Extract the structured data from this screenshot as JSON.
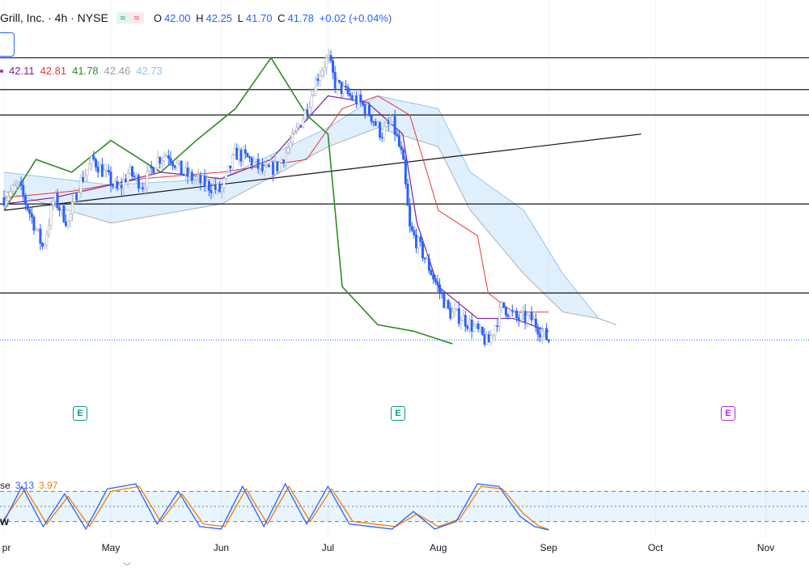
{
  "header": {
    "symbol_title": "Grill, Inc. · 4h · NYSE",
    "pill_left": "≈",
    "pill_right": "≈",
    "open_label": "O",
    "open": "42.00",
    "high_label": "H",
    "high": "42.25",
    "low_label": "L",
    "low": "41.70",
    "close_label": "C",
    "close": "41.78",
    "change": "+0.02 (+0.04%)"
  },
  "ichimoku_legend": {
    "values": [
      "42.11",
      "42.81",
      "41.78",
      "42.46",
      "42.73"
    ],
    "colors": [
      "#7b1fa2",
      "#e53935",
      "#2e8b22",
      "#9e9e9e",
      "#90c4f5"
    ]
  },
  "stoch_legend": {
    "label_fragment": "se",
    "k_value": "3.13",
    "d_value": "3.97",
    "k_color": "#2962ff",
    "d_color": "#f57c00"
  },
  "w_tag": "w",
  "earnings_markers": [
    {
      "label": "E",
      "month": "Apr",
      "type": "past"
    },
    {
      "label": "E",
      "month": "Jul",
      "type": "past"
    },
    {
      "label": "E",
      "month": "Oct",
      "type": "future"
    }
  ],
  "chart_data": {
    "type": "candlestick",
    "timeframe": "4h",
    "x_tick_labels": [
      "pr",
      "May",
      "Jun",
      "Jul",
      "Aug",
      "Sep",
      "Oct",
      "Nov"
    ],
    "price_range_visible": [
      41.4,
      44.2
    ],
    "last_price": 41.78,
    "horizontal_levels": [
      44.0,
      43.75,
      43.55,
      42.85,
      42.15
    ],
    "trendline": {
      "from": {
        "date": "2024-04-01",
        "price": 42.8
      },
      "to": {
        "date": "2024-09-27",
        "price": 43.4
      }
    },
    "price_path": [
      {
        "date": "2024-04-01",
        "price": 42.9
      },
      {
        "date": "2024-04-05",
        "price": 43.0
      },
      {
        "date": "2024-04-08",
        "price": 42.8
      },
      {
        "date": "2024-04-12",
        "price": 42.5
      },
      {
        "date": "2024-04-15",
        "price": 42.9
      },
      {
        "date": "2024-04-19",
        "price": 42.7
      },
      {
        "date": "2024-04-22",
        "price": 43.0
      },
      {
        "date": "2024-04-26",
        "price": 43.2
      },
      {
        "date": "2024-04-29",
        "price": 43.1
      },
      {
        "date": "2024-05-03",
        "price": 42.95
      },
      {
        "date": "2024-05-06",
        "price": 43.1
      },
      {
        "date": "2024-05-10",
        "price": 43.0
      },
      {
        "date": "2024-05-14",
        "price": 43.2
      },
      {
        "date": "2024-05-17",
        "price": 43.25
      },
      {
        "date": "2024-05-21",
        "price": 43.1
      },
      {
        "date": "2024-05-24",
        "price": 43.05
      },
      {
        "date": "2024-05-28",
        "price": 43.0
      },
      {
        "date": "2024-06-01",
        "price": 42.95
      },
      {
        "date": "2024-06-05",
        "price": 43.25
      },
      {
        "date": "2024-06-09",
        "price": 43.2
      },
      {
        "date": "2024-06-13",
        "price": 43.1
      },
      {
        "date": "2024-06-17",
        "price": 43.15
      },
      {
        "date": "2024-06-21",
        "price": 43.35
      },
      {
        "date": "2024-06-25",
        "price": 43.6
      },
      {
        "date": "2024-06-28",
        "price": 43.85
      },
      {
        "date": "2024-07-01",
        "price": 44.0
      },
      {
        "date": "2024-07-03",
        "price": 43.8
      },
      {
        "date": "2024-07-07",
        "price": 43.7
      },
      {
        "date": "2024-07-10",
        "price": 43.65
      },
      {
        "date": "2024-07-13",
        "price": 43.55
      },
      {
        "date": "2024-07-16",
        "price": 43.4
      },
      {
        "date": "2024-07-19",
        "price": 43.5
      },
      {
        "date": "2024-07-22",
        "price": 43.2
      },
      {
        "date": "2024-07-24",
        "price": 42.65
      },
      {
        "date": "2024-07-27",
        "price": 42.5
      },
      {
        "date": "2024-07-31",
        "price": 42.25
      },
      {
        "date": "2024-08-04",
        "price": 42.0
      },
      {
        "date": "2024-08-08",
        "price": 41.95
      },
      {
        "date": "2024-08-12",
        "price": 41.85
      },
      {
        "date": "2024-08-15",
        "price": 41.75
      },
      {
        "date": "2024-08-19",
        "price": 42.05
      },
      {
        "date": "2024-08-23",
        "price": 41.95
      },
      {
        "date": "2024-08-27",
        "price": 41.95
      },
      {
        "date": "2024-09-01",
        "price": 41.78
      }
    ],
    "tenkan_sen": [
      {
        "date": "2024-04-01",
        "price": 42.85
      },
      {
        "date": "2024-04-15",
        "price": 42.9
      },
      {
        "date": "2024-05-01",
        "price": 43.0
      },
      {
        "date": "2024-05-15",
        "price": 43.1
      },
      {
        "date": "2024-06-01",
        "price": 43.05
      },
      {
        "date": "2024-06-15",
        "price": 43.2
      },
      {
        "date": "2024-07-01",
        "price": 43.7
      },
      {
        "date": "2024-07-12",
        "price": 43.65
      },
      {
        "date": "2024-07-22",
        "price": 43.4
      },
      {
        "date": "2024-07-26",
        "price": 42.7
      },
      {
        "date": "2024-08-01",
        "price": 42.2
      },
      {
        "date": "2024-08-12",
        "price": 41.95
      },
      {
        "date": "2024-08-22",
        "price": 41.95
      },
      {
        "date": "2024-09-01",
        "price": 41.85
      }
    ],
    "kijun_sen": [
      {
        "date": "2024-04-01",
        "price": 42.9
      },
      {
        "date": "2024-04-20",
        "price": 42.95
      },
      {
        "date": "2024-05-10",
        "price": 43.05
      },
      {
        "date": "2024-06-01",
        "price": 43.1
      },
      {
        "date": "2024-06-25",
        "price": 43.2
      },
      {
        "date": "2024-07-05",
        "price": 43.6
      },
      {
        "date": "2024-07-15",
        "price": 43.7
      },
      {
        "date": "2024-07-24",
        "price": 43.55
      },
      {
        "date": "2024-08-01",
        "price": 42.8
      },
      {
        "date": "2024-08-12",
        "price": 42.6
      },
      {
        "date": "2024-08-15",
        "price": 42.15
      },
      {
        "date": "2024-08-22",
        "price": 42.0
      },
      {
        "date": "2024-09-01",
        "price": 42.0
      }
    ],
    "chikou_span": [
      {
        "date": "2024-04-01",
        "price": 42.8
      },
      {
        "date": "2024-04-10",
        "price": 43.2
      },
      {
        "date": "2024-04-20",
        "price": 43.1
      },
      {
        "date": "2024-05-01",
        "price": 43.35
      },
      {
        "date": "2024-05-15",
        "price": 43.1
      },
      {
        "date": "2024-05-25",
        "price": 43.35
      },
      {
        "date": "2024-06-05",
        "price": 43.6
      },
      {
        "date": "2024-06-15",
        "price": 44.0
      },
      {
        "date": "2024-06-25",
        "price": 43.55
      },
      {
        "date": "2024-07-01",
        "price": 43.4
      },
      {
        "date": "2024-07-05",
        "price": 42.2
      },
      {
        "date": "2024-07-15",
        "price": 41.9
      },
      {
        "date": "2024-07-25",
        "price": 41.85
      },
      {
        "date": "2024-08-05",
        "price": 41.75
      }
    ],
    "cloud_upper": [
      {
        "date": "2024-04-01",
        "price": 43.1
      },
      {
        "date": "2024-05-01",
        "price": 43.0
      },
      {
        "date": "2024-06-01",
        "price": 43.05
      },
      {
        "date": "2024-07-01",
        "price": 43.45
      },
      {
        "date": "2024-07-15",
        "price": 43.7
      },
      {
        "date": "2024-08-01",
        "price": 43.6
      },
      {
        "date": "2024-08-10",
        "price": 43.1
      },
      {
        "date": "2024-08-25",
        "price": 42.8
      },
      {
        "date": "2024-09-05",
        "price": 42.3
      },
      {
        "date": "2024-09-15",
        "price": 41.95
      },
      {
        "date": "2024-09-20",
        "price": 41.9
      }
    ],
    "cloud_lower": [
      {
        "date": "2024-04-01",
        "price": 42.95
      },
      {
        "date": "2024-05-01",
        "price": 42.7
      },
      {
        "date": "2024-06-01",
        "price": 42.85
      },
      {
        "date": "2024-07-01",
        "price": 43.3
      },
      {
        "date": "2024-07-15",
        "price": 43.45
      },
      {
        "date": "2024-08-01",
        "price": 43.3
      },
      {
        "date": "2024-08-10",
        "price": 42.8
      },
      {
        "date": "2024-08-25",
        "price": 42.3
      },
      {
        "date": "2024-09-05",
        "price": 42.0
      },
      {
        "date": "2024-09-15",
        "price": 41.95
      },
      {
        "date": "2024-09-20",
        "price": 41.9
      }
    ],
    "stochastic": {
      "range": [
        0,
        100
      ],
      "bands": [
        80,
        50,
        20
      ],
      "k_path": [
        {
          "date": "2024-04-01",
          "value": 20
        },
        {
          "date": "2024-04-06",
          "value": 90
        },
        {
          "date": "2024-04-12",
          "value": 10
        },
        {
          "date": "2024-04-18",
          "value": 75
        },
        {
          "date": "2024-04-24",
          "value": 5
        },
        {
          "date": "2024-04-30",
          "value": 85
        },
        {
          "date": "2024-05-08",
          "value": 95
        },
        {
          "date": "2024-05-14",
          "value": 15
        },
        {
          "date": "2024-05-20",
          "value": 80
        },
        {
          "date": "2024-05-26",
          "value": 10
        },
        {
          "date": "2024-06-01",
          "value": 5
        },
        {
          "date": "2024-06-07",
          "value": 90
        },
        {
          "date": "2024-06-13",
          "value": 10
        },
        {
          "date": "2024-06-19",
          "value": 95
        },
        {
          "date": "2024-06-25",
          "value": 15
        },
        {
          "date": "2024-07-01",
          "value": 90
        },
        {
          "date": "2024-07-07",
          "value": 15
        },
        {
          "date": "2024-07-13",
          "value": 10
        },
        {
          "date": "2024-07-19",
          "value": 5
        },
        {
          "date": "2024-07-25",
          "value": 40
        },
        {
          "date": "2024-07-31",
          "value": 5
        },
        {
          "date": "2024-08-06",
          "value": 20
        },
        {
          "date": "2024-08-12",
          "value": 95
        },
        {
          "date": "2024-08-18",
          "value": 90
        },
        {
          "date": "2024-08-24",
          "value": 30
        },
        {
          "date": "2024-08-28",
          "value": 10
        },
        {
          "date": "2024-09-01",
          "value": 3
        }
      ],
      "d_path": [
        {
          "date": "2024-04-01",
          "value": 25
        },
        {
          "date": "2024-04-07",
          "value": 85
        },
        {
          "date": "2024-04-13",
          "value": 15
        },
        {
          "date": "2024-04-19",
          "value": 70
        },
        {
          "date": "2024-04-25",
          "value": 10
        },
        {
          "date": "2024-05-01",
          "value": 80
        },
        {
          "date": "2024-05-09",
          "value": 90
        },
        {
          "date": "2024-05-15",
          "value": 20
        },
        {
          "date": "2024-05-21",
          "value": 75
        },
        {
          "date": "2024-05-27",
          "value": 15
        },
        {
          "date": "2024-06-02",
          "value": 10
        },
        {
          "date": "2024-06-08",
          "value": 85
        },
        {
          "date": "2024-06-14",
          "value": 15
        },
        {
          "date": "2024-06-20",
          "value": 90
        },
        {
          "date": "2024-06-26",
          "value": 20
        },
        {
          "date": "2024-07-02",
          "value": 85
        },
        {
          "date": "2024-07-08",
          "value": 20
        },
        {
          "date": "2024-07-14",
          "value": 15
        },
        {
          "date": "2024-07-20",
          "value": 10
        },
        {
          "date": "2024-07-26",
          "value": 35
        },
        {
          "date": "2024-08-01",
          "value": 10
        },
        {
          "date": "2024-08-07",
          "value": 25
        },
        {
          "date": "2024-08-13",
          "value": 90
        },
        {
          "date": "2024-08-19",
          "value": 85
        },
        {
          "date": "2024-08-25",
          "value": 35
        },
        {
          "date": "2024-08-29",
          "value": 12
        },
        {
          "date": "2024-09-01",
          "value": 4
        }
      ]
    }
  }
}
